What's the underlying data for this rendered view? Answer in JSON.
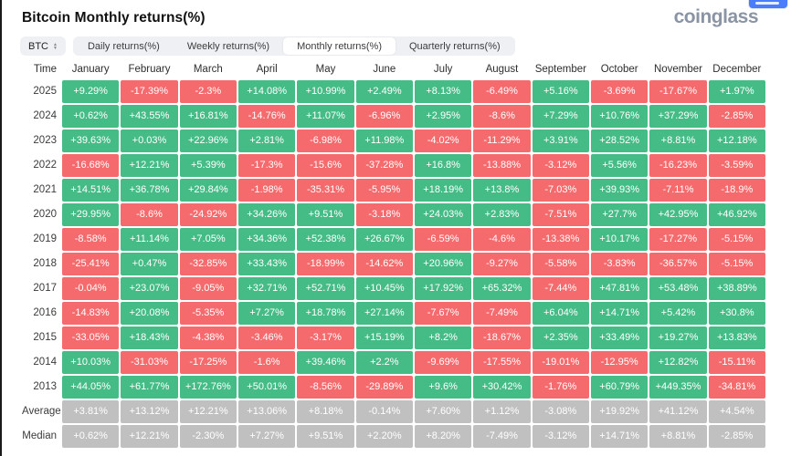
{
  "header": {
    "title": "Bitcoin Monthly returns(%)",
    "logo": "coinglass"
  },
  "controls": {
    "symbol": "BTC",
    "symbol_icon": "up-down-arrows-icon",
    "tabs": [
      {
        "label": "Daily returns(%)",
        "active": false
      },
      {
        "label": "Weekly returns(%)",
        "active": false
      },
      {
        "label": "Monthly returns(%)",
        "active": true
      },
      {
        "label": "Quarterly returns(%)",
        "active": false
      }
    ]
  },
  "colors": {
    "positive": "#45BB86",
    "negative": "#F46A6D",
    "neutral": "#C0C0C0",
    "tab_bg": "#EEF0F4",
    "badge_blue": "#4A7DFC",
    "logo_gray": "#8A94A4"
  },
  "table": {
    "time_header": "Time",
    "columns": [
      "January",
      "February",
      "March",
      "April",
      "May",
      "June",
      "July",
      "August",
      "September",
      "October",
      "November",
      "December"
    ],
    "rows": [
      {
        "time": "2025",
        "neutral": false,
        "values": [
          "+9.29%",
          "-17.39%",
          "-2.3%",
          "+14.08%",
          "+10.99%",
          "+2.49%",
          "+8.13%",
          "-6.49%",
          "+5.16%",
          "-3.69%",
          "-17.67%",
          "+1.97%"
        ]
      },
      {
        "time": "2024",
        "neutral": false,
        "values": [
          "+0.62%",
          "+43.55%",
          "+16.81%",
          "-14.76%",
          "+11.07%",
          "-6.96%",
          "+2.95%",
          "-8.6%",
          "+7.29%",
          "+10.76%",
          "+37.29%",
          "-2.85%"
        ]
      },
      {
        "time": "2023",
        "neutral": false,
        "values": [
          "+39.63%",
          "+0.03%",
          "+22.96%",
          "+2.81%",
          "-6.98%",
          "+11.98%",
          "-4.02%",
          "-11.29%",
          "+3.91%",
          "+28.52%",
          "+8.81%",
          "+12.18%"
        ]
      },
      {
        "time": "2022",
        "neutral": false,
        "values": [
          "-16.68%",
          "+12.21%",
          "+5.39%",
          "-17.3%",
          "-15.6%",
          "-37.28%",
          "+16.8%",
          "-13.88%",
          "-3.12%",
          "+5.56%",
          "-16.23%",
          "-3.59%"
        ]
      },
      {
        "time": "2021",
        "neutral": false,
        "values": [
          "+14.51%",
          "+36.78%",
          "+29.84%",
          "-1.98%",
          "-35.31%",
          "-5.95%",
          "+18.19%",
          "+13.8%",
          "-7.03%",
          "+39.93%",
          "-7.11%",
          "-18.9%"
        ]
      },
      {
        "time": "2020",
        "neutral": false,
        "values": [
          "+29.95%",
          "-8.6%",
          "-24.92%",
          "+34.26%",
          "+9.51%",
          "-3.18%",
          "+24.03%",
          "+2.83%",
          "-7.51%",
          "+27.7%",
          "+42.95%",
          "+46.92%"
        ]
      },
      {
        "time": "2019",
        "neutral": false,
        "values": [
          "-8.58%",
          "+11.14%",
          "+7.05%",
          "+34.36%",
          "+52.38%",
          "+26.67%",
          "-6.59%",
          "-4.6%",
          "-13.38%",
          "+10.17%",
          "-17.27%",
          "-5.15%"
        ]
      },
      {
        "time": "2018",
        "neutral": false,
        "values": [
          "-25.41%",
          "+0.47%",
          "-32.85%",
          "+33.43%",
          "-18.99%",
          "-14.62%",
          "+20.96%",
          "-9.27%",
          "-5.58%",
          "-3.83%",
          "-36.57%",
          "-5.15%"
        ]
      },
      {
        "time": "2017",
        "neutral": false,
        "values": [
          "-0.04%",
          "+23.07%",
          "-9.05%",
          "+32.71%",
          "+52.71%",
          "+10.45%",
          "+17.92%",
          "+65.32%",
          "-7.44%",
          "+47.81%",
          "+53.48%",
          "+38.89%"
        ]
      },
      {
        "time": "2016",
        "neutral": false,
        "values": [
          "-14.83%",
          "+20.08%",
          "-5.35%",
          "+7.27%",
          "+18.78%",
          "+27.14%",
          "-7.67%",
          "-7.49%",
          "+6.04%",
          "+14.71%",
          "+5.42%",
          "+30.8%"
        ]
      },
      {
        "time": "2015",
        "neutral": false,
        "values": [
          "-33.05%",
          "+18.43%",
          "-4.38%",
          "-3.46%",
          "-3.17%",
          "+15.19%",
          "+8.2%",
          "-18.67%",
          "+2.35%",
          "+33.49%",
          "+19.27%",
          "+13.83%"
        ]
      },
      {
        "time": "2014",
        "neutral": false,
        "values": [
          "+10.03%",
          "-31.03%",
          "-17.25%",
          "-1.6%",
          "+39.46%",
          "+2.2%",
          "-9.69%",
          "-17.55%",
          "-19.01%",
          "-12.95%",
          "+12.82%",
          "-15.11%"
        ]
      },
      {
        "time": "2013",
        "neutral": false,
        "values": [
          "+44.05%",
          "+61.77%",
          "+172.76%",
          "+50.01%",
          "-8.56%",
          "-29.89%",
          "+9.6%",
          "+30.42%",
          "-1.76%",
          "+60.79%",
          "+449.35%",
          "-34.81%"
        ]
      },
      {
        "time": "Average",
        "neutral": true,
        "values": [
          "+3.81%",
          "+13.12%",
          "+12.21%",
          "+13.06%",
          "+8.18%",
          "-0.14%",
          "+7.60%",
          "+1.12%",
          "-3.08%",
          "+19.92%",
          "+41.12%",
          "+4.54%"
        ]
      },
      {
        "time": "Median",
        "neutral": true,
        "values": [
          "+0.62%",
          "+12.21%",
          "-2.30%",
          "+7.27%",
          "+9.51%",
          "+2.20%",
          "+8.20%",
          "-7.49%",
          "-3.12%",
          "+14.71%",
          "+8.81%",
          "-2.85%"
        ]
      }
    ]
  }
}
